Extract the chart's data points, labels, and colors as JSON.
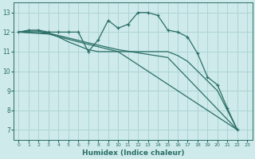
{
  "xlabel": "Humidex (Indice chaleur)",
  "background_color": "#ceeaea",
  "grid_color": "#aed4d4",
  "line_color": "#2a6e65",
  "xlim": [
    -0.5,
    23.5
  ],
  "ylim": [
    6.5,
    13.5
  ],
  "yticks": [
    7,
    8,
    9,
    10,
    11,
    12,
    13
  ],
  "xticks": [
    0,
    1,
    2,
    3,
    4,
    5,
    6,
    7,
    8,
    9,
    10,
    11,
    12,
    13,
    14,
    15,
    16,
    17,
    18,
    19,
    20,
    21,
    22,
    23
  ],
  "series": [
    {
      "x": [
        0,
        1,
        2,
        3,
        4,
        5,
        6,
        7,
        8,
        9,
        10,
        11,
        12,
        13,
        14,
        15,
        16,
        17,
        18,
        19,
        20,
        21,
        22
      ],
      "y": [
        12,
        12.1,
        12.1,
        12.0,
        12.0,
        12.0,
        12.0,
        11.0,
        11.6,
        12.6,
        12.2,
        12.4,
        13.0,
        13.0,
        12.85,
        12.1,
        12.0,
        11.75,
        10.9,
        9.7,
        9.3,
        8.1,
        7.0
      ],
      "marker": true
    },
    {
      "x": [
        0,
        1,
        2,
        3,
        4,
        5,
        6,
        7,
        8,
        9,
        10,
        11,
        12,
        13,
        14,
        15,
        16,
        17,
        18,
        19,
        20,
        21,
        22
      ],
      "y": [
        12,
        12.05,
        12.05,
        11.95,
        11.75,
        11.5,
        11.3,
        11.1,
        11.0,
        11.0,
        11.0,
        11.0,
        11.0,
        11.0,
        11.0,
        11.0,
        10.8,
        10.5,
        10.0,
        9.5,
        9.0,
        8.0,
        7.0
      ],
      "marker": false
    },
    {
      "x": [
        0,
        3,
        7,
        10,
        15,
        22
      ],
      "y": [
        12,
        11.95,
        11.45,
        11.1,
        10.7,
        7.0
      ],
      "marker": false
    },
    {
      "x": [
        0,
        3,
        6,
        10,
        22
      ],
      "y": [
        12,
        11.9,
        11.5,
        11.0,
        7.0
      ],
      "marker": false
    }
  ]
}
